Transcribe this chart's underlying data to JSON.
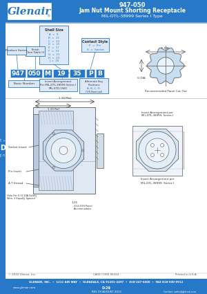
{
  "title_line1": "947-050",
  "title_line2": "Jam Nut Mount Shorting Receptacle",
  "title_line3": "MIL-DTL-38999 Series I Type",
  "header_bg": "#2878c8",
  "header_text_color": "#ffffff",
  "logo_text": "Glenair",
  "logo_box_bg": "#ffffff",
  "logo_box_border": "#2878c8",
  "side_tab_bg": "#2878c8",
  "side_tab_text": "Interconnect\nConnectors",
  "side_tab_text_color": "#ffffff",
  "d_tab_bg": "#2878c8",
  "d_tab_text": "D",
  "d_tab_text_color": "#ffffff",
  "body_bg": "#ffffff",
  "footer_bg": "#2878c8",
  "footer_text_color": "#ffffff",
  "footer_line1": "GLENAIR, INC.  •  1211 AIR WAY  •  GLENDALE, CA 91201-2497  •  818-247-6000  •  FAX 818-500-9912",
  "footer_line2": "www.glenair.com",
  "footer_line3": "D-29",
  "footer_line4": "REV 29 AUGUST 2013",
  "footer_line5": "Contact: sales@glenair.com",
  "copyright_text": "© 2010 Glenair, Inc.",
  "cage_code_text": "CAGE CODE 06324",
  "printed_text": "Printed in U.S.A.",
  "part_number_boxes": [
    "947",
    "050",
    "M",
    "19",
    "35",
    "P",
    "B"
  ],
  "box_color": "#2878c8",
  "box_text_color": "#ffffff",
  "label_box_bg": "#dce8f8",
  "label_box_border": "#2878c8",
  "shell_size_title": "Shell Size",
  "shell_sizes": [
    "A  =  9",
    "B  =  11",
    "C  =  13",
    "D  =  15",
    "E  =  17",
    "F  =  19",
    "G  =  21",
    "H  =  23",
    "J  =  25"
  ],
  "finish_label": "Finish\n(See Table II)",
  "contact_style_title": "Contact Style",
  "contact_style_p": "P  =  Pin",
  "contact_style_s": "S  =  Socket",
  "product_series_label": "Product Series",
  "basic_number_label": "Basic Number",
  "insert_arrangement_label": "Insert Arrangement\nPer MIL-DTL-38999 Series I\nMIL-STD-1560",
  "alternate_key_label": "Alternate Key\nPositions\nA, B, C, D,\n(Y-N Nominal)",
  "diagram_note": "Recommended Panel Cut-Out",
  "bottom_diagram_note": "Insert Arrangement per\nMIL-DTL-38999, Series I",
  "fdiam_label": "F DIA.",
  "gdiam_label": "G DIA.",
  "cross_section_labels": [
    "Socket Insert",
    "Pin Insert",
    "A.T thread",
    "Hole For 0.32 DIA Safety\nWire, 3 Equally Spaced"
  ],
  "panel_label1": ".125",
  "panel_label2": ".312/.093 Panel\nAccommodate",
  "dim_max": "1.34 Max",
  "dim_ref": "1.10 Ref",
  "gray_line": "#999999",
  "dark_line": "#555555",
  "blue_text": "#2878c8",
  "body_text": "#333333"
}
